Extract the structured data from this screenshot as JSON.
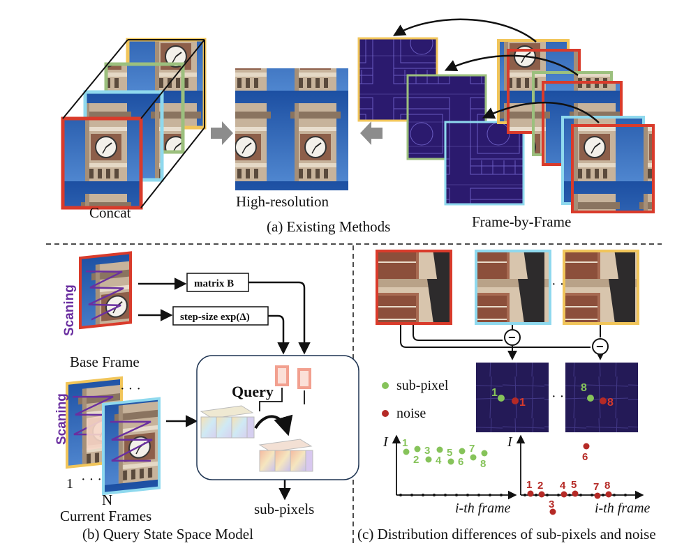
{
  "panel_a": {
    "concat_label": "Concat",
    "hr_label": "High-resolution",
    "fbf_label": "Frame-by-Frame",
    "caption": "(a) Existing Methods"
  },
  "panel_b": {
    "scaning_top": "Scaning",
    "scaning_bottom": "Scaning",
    "base_frame_label": "Base Frame",
    "matrix_label": "matrix B",
    "step_label": "step-size exp(Δ)",
    "query_label": "Query",
    "sub_pixels_label": "sub-pixels",
    "frame_1": "1",
    "frame_n": "N",
    "current_frames_label": "Current Frames",
    "caption": "(b) Query State Space Model"
  },
  "panel_c": {
    "legend_sub": "sub-pixel",
    "legend_noise": "noise",
    "minus": "−",
    "axis_i": "I",
    "xlabel": "i-th frame",
    "caption": "(c) Distribution differences of sub-pixels and noise",
    "map1_green": "1",
    "map1_red": "1",
    "map2_green": "8",
    "map2_red": "8",
    "ellipsis": "· · ·",
    "left_points": [
      {
        "label": "1",
        "v": 6.2
      },
      {
        "label": "2",
        "v": 6.6
      },
      {
        "label": "3",
        "v": 5.1
      },
      {
        "label": "4",
        "v": 6.5
      },
      {
        "label": "5",
        "v": 4.8
      },
      {
        "label": "6",
        "v": 6.3
      },
      {
        "label": "7",
        "v": 5.4
      },
      {
        "label": "8",
        "v": 6.0
      }
    ],
    "right_points": [
      {
        "label": "1",
        "v": 0.2
      },
      {
        "label": "2",
        "v": 0.1
      },
      {
        "label": "3",
        "v": -2.4
      },
      {
        "label": "4",
        "v": 0.1
      },
      {
        "label": "5",
        "v": 0.2
      },
      {
        "label": "6",
        "v": 7.0
      },
      {
        "label": "7",
        "v": -0.1
      },
      {
        "label": "8",
        "v": 0.1
      }
    ]
  },
  "colors": {
    "red": "#d93b2b",
    "yellow": "#f1c55a",
    "green": "#9cc07e",
    "cyan": "#8fd9ee",
    "purple": "#6a2fa0",
    "pink": "#f2a08f",
    "point_green": "#86c35a",
    "point_red": "#b52a26"
  }
}
